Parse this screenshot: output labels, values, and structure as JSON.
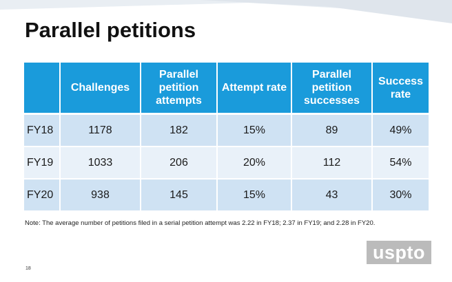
{
  "slide": {
    "title": "Parallel petitions",
    "note": "Note: The average number of petitions filed in a serial petition attempt was 2.22 in FY18; 2.37 in FY19; and 2.28 in FY20.",
    "page_number": "18",
    "logo_text": "uspto"
  },
  "table": {
    "headers": [
      "",
      "Challenges",
      "Parallel petition attempts",
      "Attempt rate",
      "Parallel petition successes",
      "Success rate"
    ],
    "rows": [
      [
        "FY18",
        "1178",
        "182",
        "15%",
        "89",
        "49%"
      ],
      [
        "FY19",
        "1033",
        "206",
        "20%",
        "112",
        "54%"
      ],
      [
        "FY20",
        "938",
        "145",
        "15%",
        "43",
        "30%"
      ]
    ]
  },
  "colors": {
    "header_bg": "#1a9bdb",
    "row_odd_bg": "#cfe2f3",
    "row_even_bg": "#e9f1f9",
    "logo_bg": "#bbbbbb"
  }
}
